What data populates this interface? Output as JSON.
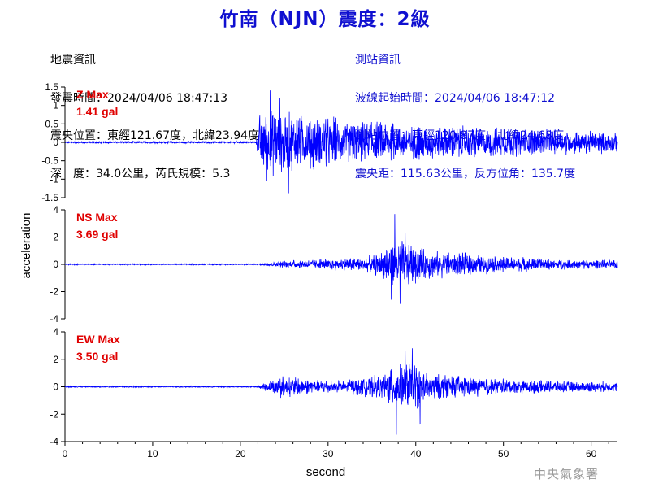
{
  "title": "竹南（NJN）震度：2級",
  "quake_info": {
    "heading": "地震資訊",
    "origin_time": "發震時間：2024/04/06 18:47:13",
    "epicenter": "震央位置：東經121.67度，北緯23.94度",
    "depth_magnitude": "深　度：34.0公里，芮氏規模：5.3"
  },
  "station_info": {
    "heading": "測站資訊",
    "wave_onset": "波線起始時間：2024/04/06 18:47:12",
    "station_location": "測站位置：東經120.87度，北緯24.68度",
    "distance": "震央距：115.63公里，反方位角：135.7度"
  },
  "credit": "中央氣象署",
  "colors": {
    "title": "#1010d0",
    "trace": "#0000ff",
    "max_label": "#e00000",
    "station_text": "#1010d0"
  },
  "chart_data": {
    "type": "line",
    "xlabel": "second",
    "ylabel": "acceleration",
    "xlim": [
      0,
      63
    ],
    "xticks": [
      "0",
      "10",
      "20",
      "30",
      "40",
      "50",
      "60"
    ],
    "panels": [
      {
        "name": "Z Max",
        "max_value": "1.41 gal",
        "ylim": [
          -1.5,
          1.5
        ],
        "yticks": [
          "1.5",
          "1",
          "0.5",
          "0",
          "-0.5",
          "-1",
          "-1.5"
        ],
        "noise": 0.03,
        "envelope": [
          [
            0,
            0.03
          ],
          [
            21.8,
            0.03
          ],
          [
            22.2,
            0.9
          ],
          [
            23,
            1.1
          ],
          [
            25,
            1.0
          ],
          [
            27,
            0.85
          ],
          [
            30,
            0.75
          ],
          [
            35,
            0.6
          ],
          [
            40,
            0.55
          ],
          [
            45,
            0.5
          ],
          [
            50,
            0.45
          ],
          [
            55,
            0.4
          ],
          [
            60,
            0.35
          ],
          [
            63,
            0.3
          ]
        ],
        "peaks": [
          [
            23.4,
            1.41
          ],
          [
            25.5,
            -1.38
          ],
          [
            23,
            -1.05
          ],
          [
            24.5,
            1.2
          ]
        ]
      },
      {
        "name": "NS Max",
        "max_value": "3.69 gal",
        "ylim": [
          -4,
          4
        ],
        "yticks": [
          "4",
          "2",
          "0",
          "-2",
          "-4"
        ],
        "noise": 0.05,
        "envelope": [
          [
            0,
            0.05
          ],
          [
            22,
            0.05
          ],
          [
            25,
            0.3
          ],
          [
            30,
            0.45
          ],
          [
            35,
            0.7
          ],
          [
            37,
            1.8
          ],
          [
            38.5,
            2.2
          ],
          [
            40,
            1.5
          ],
          [
            43,
            1.1
          ],
          [
            47,
            0.8
          ],
          [
            52,
            0.6
          ],
          [
            57,
            0.4
          ],
          [
            63,
            0.35
          ]
        ],
        "peaks": [
          [
            37.6,
            3.69
          ],
          [
            38.2,
            -2.9
          ],
          [
            37.2,
            -2.6
          ],
          [
            38.8,
            2.3
          ]
        ]
      },
      {
        "name": "EW Max",
        "max_value": "3.50 gal",
        "ylim": [
          -4,
          4
        ],
        "yticks": [
          "4",
          "2",
          "0",
          "-2",
          "-4"
        ],
        "noise": 0.05,
        "envelope": [
          [
            0,
            0.05
          ],
          [
            22,
            0.05
          ],
          [
            24.5,
            0.9
          ],
          [
            26,
            0.8
          ],
          [
            28,
            0.55
          ],
          [
            32,
            0.5
          ],
          [
            36,
            1.0
          ],
          [
            38,
            1.9
          ],
          [
            39.5,
            2.1
          ],
          [
            41,
            1.3
          ],
          [
            44,
            0.9
          ],
          [
            48,
            0.7
          ],
          [
            53,
            0.55
          ],
          [
            58,
            0.45
          ],
          [
            63,
            0.4
          ]
        ],
        "peaks": [
          [
            37.8,
            -3.5
          ],
          [
            39.6,
            2.8
          ],
          [
            38.8,
            2.6
          ],
          [
            40.5,
            -2.7
          ]
        ]
      }
    ]
  }
}
